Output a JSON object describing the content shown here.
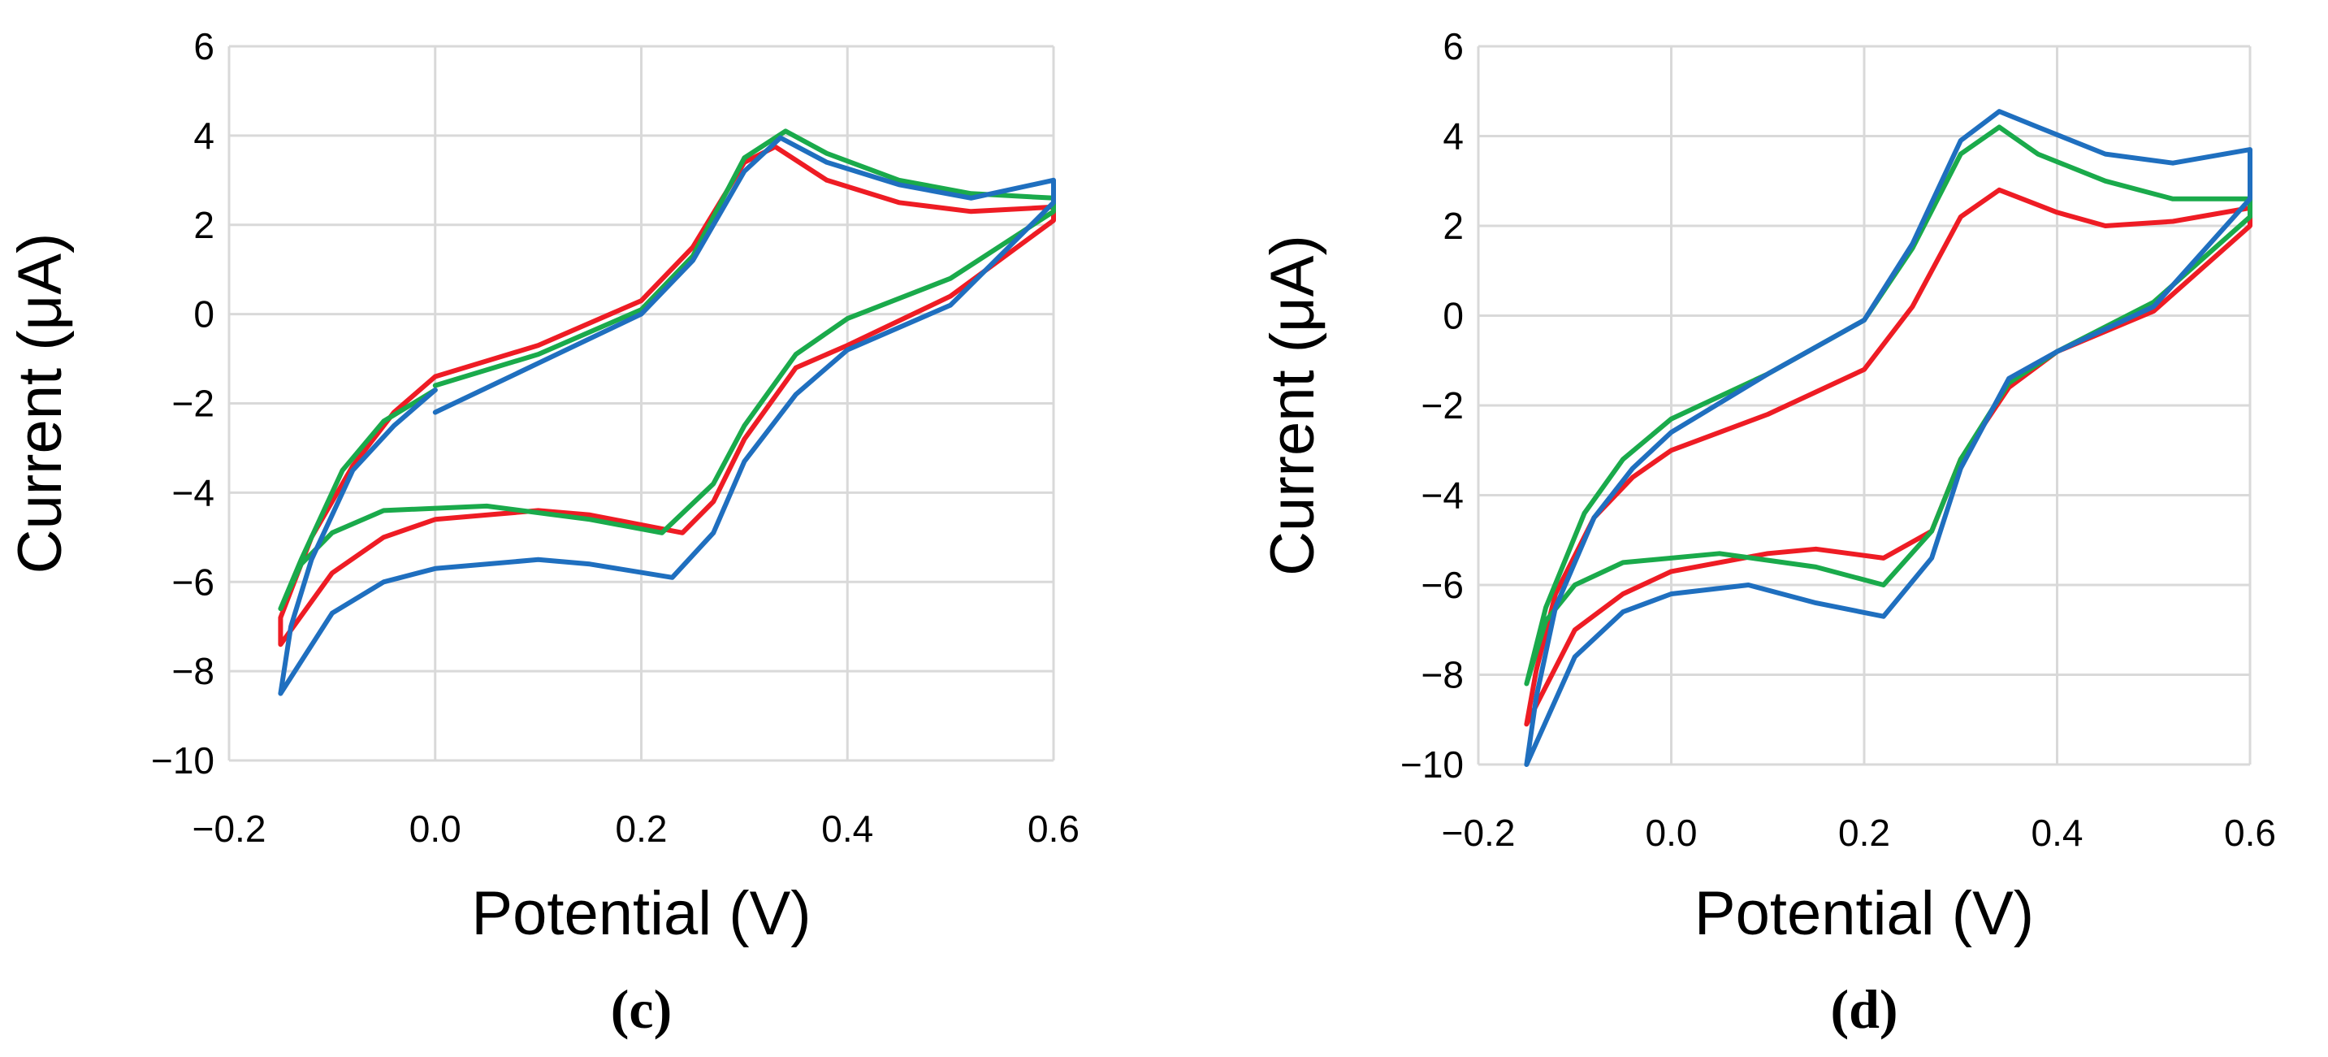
{
  "chart_data": [
    {
      "type": "line",
      "panel_label": "(c)",
      "xlabel": "Potential (V)",
      "ylabel": "Current (μA)",
      "xlim": [
        -0.2,
        0.6
      ],
      "ylim": [
        -10,
        6
      ],
      "x_ticks": [
        -0.2,
        0.0,
        0.2,
        0.4,
        0.6
      ],
      "y_ticks": [
        6,
        4,
        2,
        0,
        -2,
        -4,
        -6,
        -8,
        -10
      ],
      "x_tick_labels": [
        "−0.2",
        "0.0",
        "0.2",
        "0.4",
        "0.6"
      ],
      "y_tick_labels": [
        "6",
        "4",
        "2",
        "0",
        "−2",
        "−4",
        "−6",
        "−8",
        "−10"
      ],
      "grid": true,
      "series": [
        {
          "name": "red",
          "color": "#ee1c24",
          "points": [
            [
              0.0,
              -1.4
            ],
            [
              0.1,
              -0.7
            ],
            [
              0.2,
              0.3
            ],
            [
              0.25,
              1.5
            ],
            [
              0.3,
              3.4
            ],
            [
              0.33,
              3.75
            ],
            [
              0.38,
              3.0
            ],
            [
              0.45,
              2.5
            ],
            [
              0.52,
              2.3
            ],
            [
              0.6,
              2.4
            ],
            [
              0.6,
              2.1
            ],
            [
              0.5,
              0.4
            ],
            [
              0.4,
              -0.7
            ],
            [
              0.35,
              -1.2
            ],
            [
              0.3,
              -2.8
            ],
            [
              0.27,
              -4.2
            ],
            [
              0.24,
              -4.9
            ],
            [
              0.15,
              -4.5
            ],
            [
              0.1,
              -4.4
            ],
            [
              0.0,
              -4.6
            ],
            [
              -0.05,
              -5.0
            ],
            [
              -0.1,
              -5.8
            ],
            [
              -0.15,
              -7.4
            ],
            [
              -0.15,
              -6.8
            ],
            [
              -0.12,
              -5.0
            ],
            [
              -0.08,
              -3.4
            ],
            [
              -0.04,
              -2.2
            ],
            [
              0.0,
              -1.4
            ]
          ]
        },
        {
          "name": "green",
          "color": "#1aaa4b",
          "points": [
            [
              0.0,
              -1.6
            ],
            [
              0.1,
              -0.9
            ],
            [
              0.2,
              0.1
            ],
            [
              0.25,
              1.3
            ],
            [
              0.3,
              3.5
            ],
            [
              0.34,
              4.1
            ],
            [
              0.38,
              3.6
            ],
            [
              0.45,
              3.0
            ],
            [
              0.52,
              2.7
            ],
            [
              0.6,
              2.6
            ],
            [
              0.6,
              2.3
            ],
            [
              0.5,
              0.8
            ],
            [
              0.4,
              -0.1
            ],
            [
              0.35,
              -0.9
            ],
            [
              0.3,
              -2.5
            ],
            [
              0.27,
              -3.8
            ],
            [
              0.22,
              -4.9
            ],
            [
              0.15,
              -4.6
            ],
            [
              0.05,
              -4.3
            ],
            [
              -0.05,
              -4.4
            ],
            [
              -0.1,
              -4.9
            ],
            [
              -0.13,
              -5.6
            ],
            [
              -0.15,
              -6.6
            ],
            [
              -0.13,
              -5.5
            ],
            [
              -0.09,
              -3.5
            ],
            [
              -0.05,
              -2.4
            ],
            [
              0.0,
              -1.7
            ]
          ]
        },
        {
          "name": "blue",
          "color": "#1f6fbf",
          "points": [
            [
              0.0,
              -2.2
            ],
            [
              0.1,
              -1.1
            ],
            [
              0.2,
              0.0
            ],
            [
              0.25,
              1.2
            ],
            [
              0.3,
              3.2
            ],
            [
              0.335,
              3.95
            ],
            [
              0.38,
              3.4
            ],
            [
              0.45,
              2.9
            ],
            [
              0.52,
              2.6
            ],
            [
              0.6,
              3.0
            ],
            [
              0.6,
              2.5
            ],
            [
              0.5,
              0.2
            ],
            [
              0.4,
              -0.8
            ],
            [
              0.35,
              -1.8
            ],
            [
              0.3,
              -3.3
            ],
            [
              0.27,
              -4.9
            ],
            [
              0.23,
              -5.9
            ],
            [
              0.15,
              -5.6
            ],
            [
              0.1,
              -5.5
            ],
            [
              0.0,
              -5.7
            ],
            [
              -0.05,
              -6.0
            ],
            [
              -0.1,
              -6.7
            ],
            [
              -0.15,
              -8.5
            ],
            [
              -0.14,
              -7.0
            ],
            [
              -0.12,
              -5.5
            ],
            [
              -0.08,
              -3.5
            ],
            [
              -0.04,
              -2.5
            ],
            [
              0.0,
              -1.7
            ]
          ]
        }
      ]
    },
    {
      "type": "line",
      "panel_label": "(d)",
      "xlabel": "Potential (V)",
      "ylabel": "Current (μA)",
      "xlim": [
        -0.2,
        0.6
      ],
      "ylim": [
        -10,
        6
      ],
      "x_ticks": [
        -0.2,
        0.0,
        0.2,
        0.4,
        0.6
      ],
      "y_ticks": [
        6,
        4,
        2,
        0,
        -2,
        -4,
        -6,
        -8,
        -10
      ],
      "x_tick_labels": [
        "−0.2",
        "0.0",
        "0.2",
        "0.4",
        "0.6"
      ],
      "y_tick_labels": [
        "6",
        "4",
        "2",
        "0",
        "−2",
        "−4",
        "−6",
        "−8",
        "−10"
      ],
      "grid": true,
      "series": [
        {
          "name": "red",
          "color": "#ee1c24",
          "points": [
            [
              0.0,
              -3.0
            ],
            [
              0.1,
              -2.2
            ],
            [
              0.2,
              -1.2
            ],
            [
              0.25,
              0.2
            ],
            [
              0.3,
              2.2
            ],
            [
              0.34,
              2.8
            ],
            [
              0.4,
              2.3
            ],
            [
              0.45,
              2.0
            ],
            [
              0.52,
              2.1
            ],
            [
              0.6,
              2.4
            ],
            [
              0.6,
              2.0
            ],
            [
              0.5,
              0.1
            ],
            [
              0.4,
              -0.8
            ],
            [
              0.35,
              -1.6
            ],
            [
              0.3,
              -3.2
            ],
            [
              0.27,
              -4.8
            ],
            [
              0.22,
              -5.4
            ],
            [
              0.15,
              -5.2
            ],
            [
              0.1,
              -5.3
            ],
            [
              0.0,
              -5.7
            ],
            [
              -0.05,
              -6.2
            ],
            [
              -0.1,
              -7.0
            ],
            [
              -0.15,
              -9.1
            ],
            [
              -0.14,
              -7.9
            ],
            [
              -0.12,
              -6.2
            ],
            [
              -0.08,
              -4.5
            ],
            [
              -0.04,
              -3.6
            ],
            [
              0.0,
              -3.0
            ]
          ]
        },
        {
          "name": "green",
          "color": "#1aaa4b",
          "points": [
            [
              0.0,
              -2.3
            ],
            [
              0.1,
              -1.3
            ],
            [
              0.2,
              -0.1
            ],
            [
              0.25,
              1.5
            ],
            [
              0.3,
              3.6
            ],
            [
              0.34,
              4.2
            ],
            [
              0.38,
              3.6
            ],
            [
              0.45,
              3.0
            ],
            [
              0.52,
              2.6
            ],
            [
              0.6,
              2.6
            ],
            [
              0.6,
              2.2
            ],
            [
              0.5,
              0.3
            ],
            [
              0.4,
              -0.8
            ],
            [
              0.35,
              -1.5
            ],
            [
              0.3,
              -3.2
            ],
            [
              0.27,
              -4.8
            ],
            [
              0.22,
              -6.0
            ],
            [
              0.15,
              -5.6
            ],
            [
              0.05,
              -5.3
            ],
            [
              -0.05,
              -5.5
            ],
            [
              -0.1,
              -6.0
            ],
            [
              -0.13,
              -6.8
            ],
            [
              -0.15,
              -8.2
            ],
            [
              -0.13,
              -6.5
            ],
            [
              -0.09,
              -4.4
            ],
            [
              -0.05,
              -3.2
            ],
            [
              0.0,
              -2.3
            ]
          ]
        },
        {
          "name": "blue",
          "color": "#1f6fbf",
          "points": [
            [
              0.0,
              -2.6
            ],
            [
              0.1,
              -1.3
            ],
            [
              0.2,
              -0.1
            ],
            [
              0.25,
              1.6
            ],
            [
              0.3,
              3.9
            ],
            [
              0.34,
              4.55
            ],
            [
              0.38,
              4.2
            ],
            [
              0.45,
              3.6
            ],
            [
              0.52,
              3.4
            ],
            [
              0.6,
              3.7
            ],
            [
              0.6,
              2.6
            ],
            [
              0.5,
              0.2
            ],
            [
              0.4,
              -0.8
            ],
            [
              0.35,
              -1.4
            ],
            [
              0.3,
              -3.4
            ],
            [
              0.27,
              -5.4
            ],
            [
              0.22,
              -6.7
            ],
            [
              0.15,
              -6.4
            ],
            [
              0.08,
              -6.0
            ],
            [
              0.0,
              -6.2
            ],
            [
              -0.05,
              -6.6
            ],
            [
              -0.1,
              -7.6
            ],
            [
              -0.15,
              -10.0
            ],
            [
              -0.14,
              -8.5
            ],
            [
              -0.12,
              -6.5
            ],
            [
              -0.08,
              -4.5
            ],
            [
              -0.04,
              -3.4
            ],
            [
              0.0,
              -2.6
            ]
          ]
        }
      ]
    }
  ]
}
